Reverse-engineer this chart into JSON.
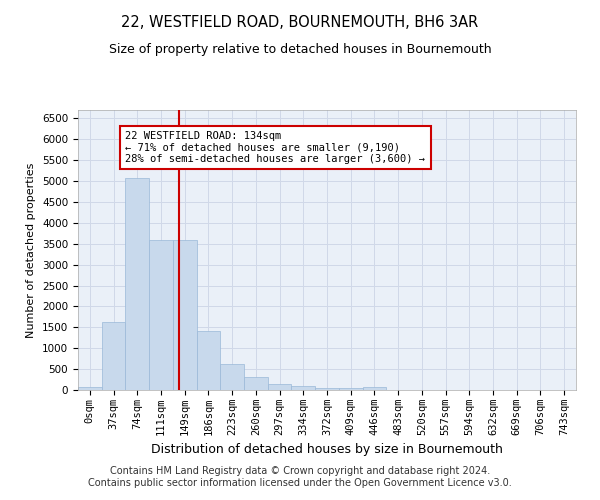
{
  "title": "22, WESTFIELD ROAD, BOURNEMOUTH, BH6 3AR",
  "subtitle": "Size of property relative to detached houses in Bournemouth",
  "xlabel": "Distribution of detached houses by size in Bournemouth",
  "ylabel": "Number of detached properties",
  "bar_labels": [
    "0sqm",
    "37sqm",
    "74sqm",
    "111sqm",
    "149sqm",
    "186sqm",
    "223sqm",
    "260sqm",
    "297sqm",
    "334sqm",
    "372sqm",
    "409sqm",
    "446sqm",
    "483sqm",
    "520sqm",
    "557sqm",
    "594sqm",
    "632sqm",
    "669sqm",
    "706sqm",
    "743sqm"
  ],
  "bar_values": [
    80,
    1630,
    5080,
    3600,
    3600,
    1420,
    620,
    305,
    155,
    95,
    55,
    55,
    60,
    0,
    0,
    0,
    0,
    0,
    0,
    0,
    0
  ],
  "bar_color": "#c8d9ec",
  "bar_edgecolor": "#9ab8d8",
  "vline_x": 3.75,
  "vline_color": "#cc0000",
  "annotation_text": "22 WESTFIELD ROAD: 134sqm\n← 71% of detached houses are smaller (9,190)\n28% of semi-detached houses are larger (3,600) →",
  "annotation_box_color": "white",
  "annotation_box_edgecolor": "#cc0000",
  "ylim": [
    0,
    6700
  ],
  "yticks": [
    0,
    500,
    1000,
    1500,
    2000,
    2500,
    3000,
    3500,
    4000,
    4500,
    5000,
    5500,
    6000,
    6500
  ],
  "grid_color": "#d0d8e8",
  "background_color": "#eaf0f8",
  "footer_line1": "Contains HM Land Registry data © Crown copyright and database right 2024.",
  "footer_line2": "Contains public sector information licensed under the Open Government Licence v3.0.",
  "title_fontsize": 10.5,
  "subtitle_fontsize": 9,
  "xlabel_fontsize": 9,
  "ylabel_fontsize": 8,
  "tick_fontsize": 7.5,
  "annotation_fontsize": 7.5,
  "footer_fontsize": 7
}
